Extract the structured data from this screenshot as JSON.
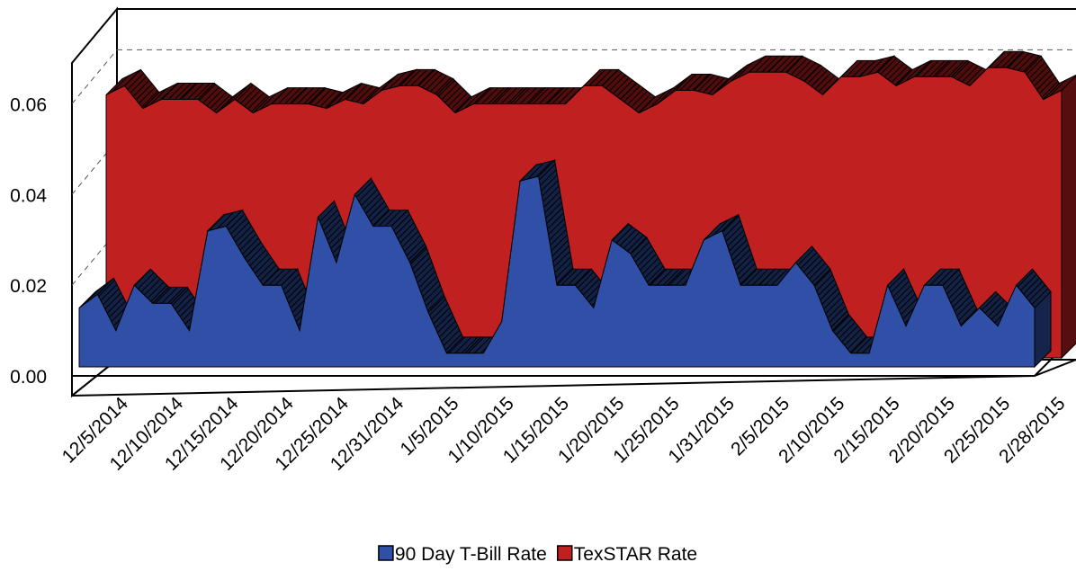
{
  "chart_data": {
    "type": "area3d",
    "categories": [
      null,
      "12/5/2014",
      null,
      null,
      "12/10/2014",
      null,
      null,
      "12/15/2014",
      null,
      null,
      "12/20/2014",
      null,
      null,
      "12/25/2014",
      null,
      null,
      "12/31/2014",
      null,
      null,
      "1/5/2015",
      null,
      null,
      "1/10/2015",
      null,
      null,
      "1/15/2015",
      null,
      null,
      "1/20/2015",
      null,
      null,
      "1/25/2015",
      null,
      null,
      "1/31/2015",
      null,
      null,
      "2/5/2015",
      null,
      null,
      "2/10/2015",
      null,
      null,
      "2/15/2015",
      null,
      null,
      "2/20/2015",
      null,
      null,
      "2/25/2015",
      null,
      null,
      "2/28/2015"
    ],
    "series": [
      {
        "name": "90 Day T-Bill Rate",
        "color": "#3050a8",
        "values": [
          0.013,
          0.016,
          0.008,
          0.018,
          0.014,
          0.014,
          0.008,
          0.03,
          0.031,
          0.024,
          0.018,
          0.018,
          0.008,
          0.033,
          0.023,
          0.038,
          0.031,
          0.031,
          0.023,
          0.012,
          0.003,
          0.003,
          0.003,
          0.01,
          0.041,
          0.042,
          0.018,
          0.018,
          0.013,
          0.028,
          0.025,
          0.018,
          0.018,
          0.018,
          0.028,
          0.03,
          0.018,
          0.018,
          0.018,
          0.023,
          0.018,
          0.008,
          0.003,
          0.003,
          0.018,
          0.009,
          0.018,
          0.018,
          0.009,
          0.013,
          0.009,
          0.018,
          0.013
        ]
      },
      {
        "name": "TexSTAR Rate",
        "color": "#c02020",
        "values": [
          0.058,
          0.06,
          0.055,
          0.057,
          0.057,
          0.057,
          0.054,
          0.057,
          0.054,
          0.056,
          0.056,
          0.056,
          0.055,
          0.057,
          0.056,
          0.059,
          0.06,
          0.06,
          0.058,
          0.054,
          0.056,
          0.056,
          0.056,
          0.056,
          0.056,
          0.056,
          0.06,
          0.06,
          0.057,
          0.054,
          0.056,
          0.059,
          0.059,
          0.058,
          0.061,
          0.063,
          0.063,
          0.063,
          0.061,
          0.058,
          0.062,
          0.062,
          0.063,
          0.06,
          0.062,
          0.062,
          0.062,
          0.06,
          0.064,
          0.064,
          0.063,
          0.057,
          0.059
        ]
      }
    ],
    "ylim": [
      0,
      0.07
    ],
    "yticks": [
      {
        "value": 0,
        "label": "0.00"
      },
      {
        "value": 0.02,
        "label": "0.02"
      },
      {
        "value": 0.04,
        "label": "0.04"
      },
      {
        "value": 0.06,
        "label": "0.06"
      }
    ],
    "grid": true,
    "legend": "bottom"
  }
}
